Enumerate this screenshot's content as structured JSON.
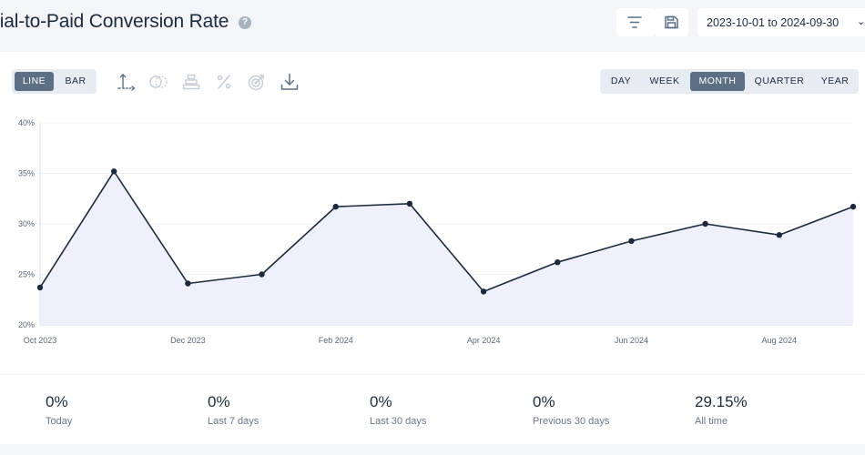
{
  "header": {
    "title": "rial-to-Paid Conversion Rate",
    "help_glyph": "?",
    "date_range": "2023-10-01 to 2024-09-30"
  },
  "toolbar": {
    "chart_types": [
      {
        "label": "LINE",
        "active": true
      },
      {
        "label": "BAR",
        "active": false
      }
    ],
    "tools": [
      "axis-icon",
      "compare-icon",
      "stack-icon",
      "percent-icon",
      "goal-icon",
      "download-icon"
    ],
    "periods": [
      {
        "label": "DAY",
        "active": false
      },
      {
        "label": "WEEK",
        "active": false
      },
      {
        "label": "MONTH",
        "active": true
      },
      {
        "label": "QUARTER",
        "active": false
      },
      {
        "label": "YEAR",
        "active": false
      }
    ]
  },
  "chart_data": {
    "type": "area",
    "x": [
      "2023-10",
      "2023-11",
      "2023-12",
      "2024-01",
      "2024-02",
      "2024-03",
      "2024-04",
      "2024-05",
      "2024-06",
      "2024-07",
      "2024-08",
      "2024-09"
    ],
    "values": [
      23.7,
      35.2,
      24.1,
      25.0,
      31.7,
      32.0,
      23.3,
      26.2,
      28.3,
      30.0,
      28.9,
      31.7
    ],
    "x_tick_labels": [
      "Oct 2023",
      "Dec 2023",
      "Feb 2024",
      "Apr 2024",
      "Jun 2024",
      "Aug 2024"
    ],
    "y_tick_labels": [
      "20%",
      "25%",
      "30%",
      "35%",
      "40%"
    ],
    "ylim": [
      20,
      40
    ],
    "grid": true,
    "line_color": "#1d2a3c",
    "fill_color": "#eef1fb"
  },
  "stats": [
    {
      "value": "0%",
      "label": "Today"
    },
    {
      "value": "0%",
      "label": "Last 7 days"
    },
    {
      "value": "0%",
      "label": "Last 30 days"
    },
    {
      "value": "0%",
      "label": "Previous 30 days"
    },
    {
      "value": "29.15%",
      "label": "All time"
    }
  ]
}
